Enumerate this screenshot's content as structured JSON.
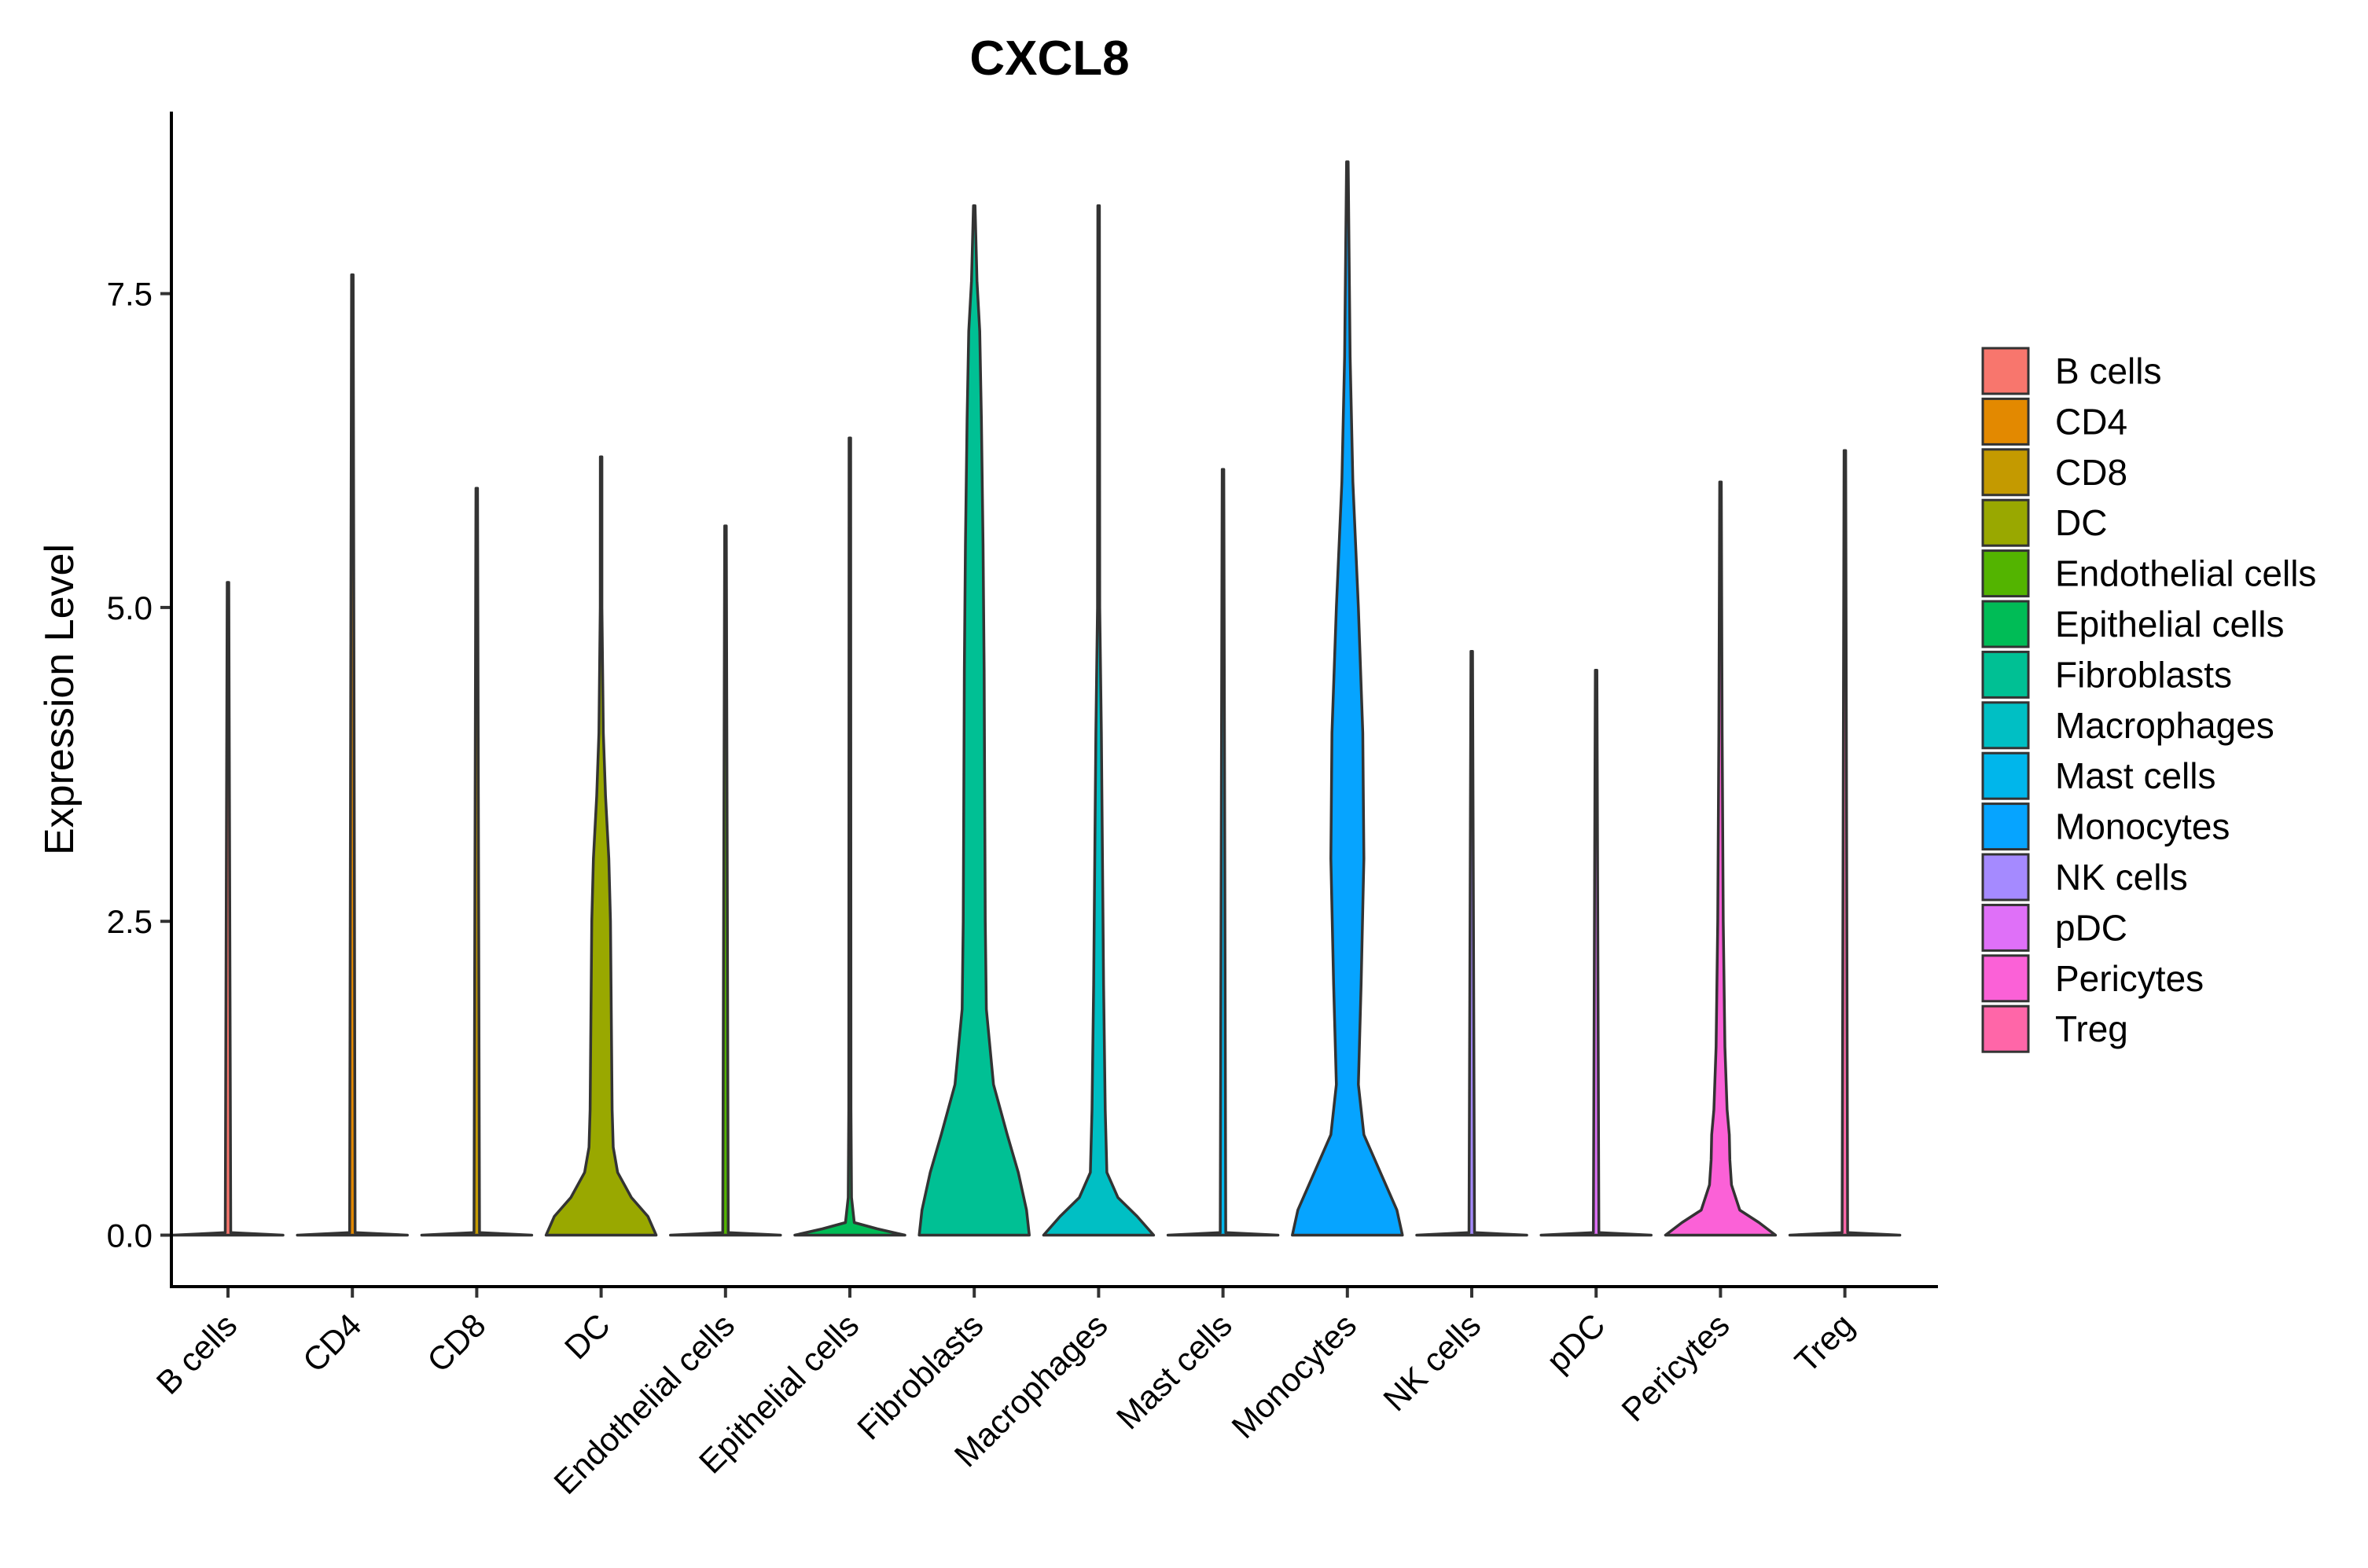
{
  "chart_data": {
    "type": "violin",
    "title": "CXCL8",
    "xlabel": "",
    "ylabel": "Expression Level",
    "ylim": [
      -0.41,
      8.95
    ],
    "yticks": [
      0.0,
      2.5,
      5.0,
      7.5
    ],
    "ytick_labels": [
      "0.0",
      "2.5",
      "5.0",
      "7.5"
    ],
    "grid": false,
    "legend_position": "right",
    "categories": [
      "B cells",
      "CD4",
      "CD8",
      "DC",
      "Endothelial cells",
      "Epithelial cells",
      "Fibroblasts",
      "Macrophages",
      "Mast cells",
      "Monocytes",
      "NK cells",
      "pDC",
      "Pericytes",
      "Treg"
    ],
    "series": [
      {
        "name": "B cells",
        "color": "#F8766D",
        "max": 5.2,
        "profile": [
          [
            0,
            1.0
          ],
          [
            0.02,
            0.05
          ],
          [
            5.2,
            0.012
          ]
        ]
      },
      {
        "name": "CD4",
        "color": "#E38900",
        "max": 7.65,
        "profile": [
          [
            0,
            1.0
          ],
          [
            0.02,
            0.05
          ],
          [
            7.65,
            0.012
          ]
        ]
      },
      {
        "name": "CD8",
        "color": "#C49A00",
        "max": 5.95,
        "profile": [
          [
            0,
            1.0
          ],
          [
            0.02,
            0.05
          ],
          [
            5.95,
            0.012
          ]
        ]
      },
      {
        "name": "DC",
        "color": "#99A800",
        "max": 6.2,
        "profile": [
          [
            0,
            1.0
          ],
          [
            0.15,
            0.85
          ],
          [
            0.3,
            0.55
          ],
          [
            0.5,
            0.3
          ],
          [
            0.7,
            0.22
          ],
          [
            1.0,
            0.2
          ],
          [
            1.5,
            0.19
          ],
          [
            2.0,
            0.18
          ],
          [
            2.5,
            0.17
          ],
          [
            3.0,
            0.14
          ],
          [
            3.5,
            0.08
          ],
          [
            4.0,
            0.04
          ],
          [
            5.0,
            0.015
          ],
          [
            6.2,
            0.01
          ]
        ]
      },
      {
        "name": "Endothelial cells",
        "color": "#53B400",
        "max": 5.65,
        "profile": [
          [
            0,
            1.0
          ],
          [
            0.02,
            0.05
          ],
          [
            5.65,
            0.012
          ]
        ]
      },
      {
        "name": "Epithelial cells",
        "color": "#00BC56",
        "max": 6.35,
        "profile": [
          [
            0,
            1.0
          ],
          [
            0.05,
            0.5
          ],
          [
            0.1,
            0.08
          ],
          [
            0.3,
            0.03
          ],
          [
            1.0,
            0.02
          ],
          [
            6.35,
            0.012
          ]
        ]
      },
      {
        "name": "Fibroblasts",
        "color": "#00C094",
        "max": 8.2,
        "profile": [
          [
            0,
            1.0
          ],
          [
            0.2,
            0.95
          ],
          [
            0.5,
            0.8
          ],
          [
            0.8,
            0.6
          ],
          [
            1.2,
            0.35
          ],
          [
            1.8,
            0.22
          ],
          [
            2.5,
            0.2
          ],
          [
            3.5,
            0.19
          ],
          [
            4.5,
            0.18
          ],
          [
            5.5,
            0.16
          ],
          [
            6.5,
            0.13
          ],
          [
            7.2,
            0.1
          ],
          [
            7.6,
            0.05
          ],
          [
            8.2,
            0.01
          ]
        ]
      },
      {
        "name": "Macrophages",
        "color": "#00BFC4",
        "max": 8.2,
        "profile": [
          [
            0,
            1.0
          ],
          [
            0.15,
            0.7
          ],
          [
            0.3,
            0.35
          ],
          [
            0.5,
            0.15
          ],
          [
            1.0,
            0.12
          ],
          [
            2.0,
            0.09
          ],
          [
            3.0,
            0.07
          ],
          [
            4.0,
            0.05
          ],
          [
            5.0,
            0.02
          ],
          [
            8.2,
            0.01
          ]
        ]
      },
      {
        "name": "Mast cells",
        "color": "#00B6EB",
        "max": 6.1,
        "profile": [
          [
            0,
            1.0
          ],
          [
            0.02,
            0.05
          ],
          [
            6.1,
            0.012
          ]
        ]
      },
      {
        "name": "Monocytes",
        "color": "#06A4FF",
        "max": 8.55,
        "profile": [
          [
            0,
            1.0
          ],
          [
            0.2,
            0.9
          ],
          [
            0.5,
            0.6
          ],
          [
            0.8,
            0.3
          ],
          [
            1.2,
            0.2
          ],
          [
            2.0,
            0.25
          ],
          [
            3.0,
            0.3
          ],
          [
            4.0,
            0.28
          ],
          [
            5.0,
            0.2
          ],
          [
            6.0,
            0.1
          ],
          [
            7.0,
            0.05
          ],
          [
            8.55,
            0.01
          ]
        ]
      },
      {
        "name": "NK cells",
        "color": "#A58AFF",
        "max": 4.65,
        "profile": [
          [
            0,
            1.0
          ],
          [
            0.02,
            0.05
          ],
          [
            4.65,
            0.012
          ]
        ]
      },
      {
        "name": "pDC",
        "color": "#DF70F8",
        "max": 4.5,
        "profile": [
          [
            0,
            1.0
          ],
          [
            0.02,
            0.05
          ],
          [
            4.5,
            0.012
          ]
        ]
      },
      {
        "name": "Pericytes",
        "color": "#FB61D7",
        "max": 6.0,
        "profile": [
          [
            0,
            1.0
          ],
          [
            0.1,
            0.7
          ],
          [
            0.2,
            0.35
          ],
          [
            0.4,
            0.2
          ],
          [
            0.6,
            0.17
          ],
          [
            0.8,
            0.16
          ],
          [
            1.0,
            0.12
          ],
          [
            1.5,
            0.08
          ],
          [
            2.5,
            0.05
          ],
          [
            4.0,
            0.03
          ],
          [
            6.0,
            0.01
          ]
        ]
      },
      {
        "name": "Treg",
        "color": "#FF66A8",
        "max": 6.25,
        "profile": [
          [
            0,
            1.0
          ],
          [
            0.02,
            0.05
          ],
          [
            6.25,
            0.012
          ]
        ]
      }
    ]
  }
}
